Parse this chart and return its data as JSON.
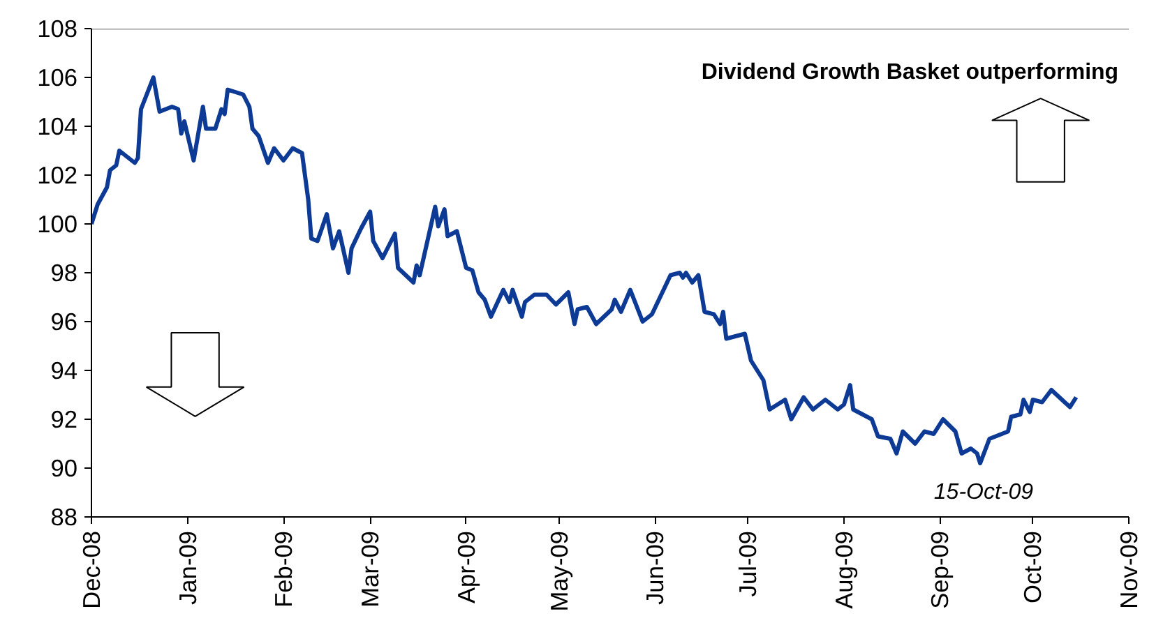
{
  "chart_data": {
    "type": "line",
    "annotations": [
      "Dividend Growth Basket outperforming",
      "15-Oct-09"
    ],
    "xlim": [
      "2008-12-01",
      "2009-11-01"
    ],
    "xticks": [
      {
        "value": "2008-12-01",
        "label": "Dec-08"
      },
      {
        "value": "2009-01-01",
        "label": "Jan-09"
      },
      {
        "value": "2009-02-01",
        "label": "Feb-09"
      },
      {
        "value": "2009-03-01",
        "label": "Mar-09"
      },
      {
        "value": "2009-04-01",
        "label": "Apr-09"
      },
      {
        "value": "2009-05-01",
        "label": "May-09"
      },
      {
        "value": "2009-06-01",
        "label": "Jun-09"
      },
      {
        "value": "2009-07-01",
        "label": "Jul-09"
      },
      {
        "value": "2009-08-01",
        "label": "Aug-09"
      },
      {
        "value": "2009-09-01",
        "label": "Sep-09"
      },
      {
        "value": "2009-10-01",
        "label": "Oct-09"
      },
      {
        "value": "2009-11-01",
        "label": "Nov-09"
      }
    ],
    "ylim": [
      88,
      108
    ],
    "yticks": [
      88,
      90,
      92,
      94,
      96,
      98,
      100,
      102,
      104,
      106,
      108
    ],
    "grid": false,
    "marker": "none",
    "line_style": "solid",
    "x": [
      "2008-12-01",
      "2008-12-03",
      "2008-12-06",
      "2008-12-07",
      "2008-12-09",
      "2008-12-10",
      "2008-12-15",
      "2008-12-16",
      "2008-12-17",
      "2008-12-21",
      "2008-12-23",
      "2008-12-27",
      "2008-12-29",
      "2008-12-30",
      "2008-12-31",
      "2009-01-03",
      "2009-01-06",
      "2009-01-07",
      "2009-01-10",
      "2009-01-12",
      "2009-01-13",
      "2009-01-14",
      "2009-01-19",
      "2009-01-21",
      "2009-01-22",
      "2009-01-24",
      "2009-01-27",
      "2009-01-29",
      "2009-02-01",
      "2009-02-04",
      "2009-02-07",
      "2009-02-09",
      "2009-02-10",
      "2009-02-12",
      "2009-02-15",
      "2009-02-17",
      "2009-02-19",
      "2009-02-22",
      "2009-02-23",
      "2009-02-26",
      "2009-03-01",
      "2009-03-02",
      "2009-03-05",
      "2009-03-09",
      "2009-03-10",
      "2009-03-15",
      "2009-03-16",
      "2009-03-17",
      "2009-03-22",
      "2009-03-23",
      "2009-03-25",
      "2009-03-26",
      "2009-03-29",
      "2009-03-31",
      "2009-04-01",
      "2009-04-03",
      "2009-04-05",
      "2009-04-07",
      "2009-04-09",
      "2009-04-13",
      "2009-04-15",
      "2009-04-16",
      "2009-04-19",
      "2009-04-20",
      "2009-04-23",
      "2009-04-27",
      "2009-04-30",
      "2009-05-04",
      "2009-05-06",
      "2009-05-07",
      "2009-05-10",
      "2009-05-13",
      "2009-05-18",
      "2009-05-19",
      "2009-05-21",
      "2009-05-24",
      "2009-05-28",
      "2009-05-31",
      "2009-06-03",
      "2009-06-06",
      "2009-06-09",
      "2009-06-10",
      "2009-06-11",
      "2009-06-13",
      "2009-06-15",
      "2009-06-17",
      "2009-06-20",
      "2009-06-22",
      "2009-06-23",
      "2009-06-24",
      "2009-06-30",
      "2009-07-02",
      "2009-07-06",
      "2009-07-08",
      "2009-07-13",
      "2009-07-15",
      "2009-07-19",
      "2009-07-22",
      "2009-07-26",
      "2009-07-30",
      "2009-08-01",
      "2009-08-03",
      "2009-08-04",
      "2009-08-10",
      "2009-08-12",
      "2009-08-16",
      "2009-08-18",
      "2009-08-20",
      "2009-08-24",
      "2009-08-27",
      "2009-08-30",
      "2009-09-02",
      "2009-09-06",
      "2009-09-08",
      "2009-09-11",
      "2009-09-13",
      "2009-09-14",
      "2009-09-17",
      "2009-09-21",
      "2009-09-23",
      "2009-09-24",
      "2009-09-27",
      "2009-09-28",
      "2009-09-30",
      "2009-10-01",
      "2009-10-04",
      "2009-10-07",
      "2009-10-13",
      "2009-10-15"
    ],
    "series": [
      {
        "color": "#0d3a94",
        "values": [
          100.0,
          100.8,
          101.5,
          102.2,
          102.4,
          103.0,
          102.5,
          102.7,
          104.7,
          106.0,
          104.6,
          104.8,
          104.7,
          103.7,
          104.2,
          102.6,
          104.8,
          103.9,
          103.9,
          104.7,
          104.5,
          105.5,
          105.3,
          104.8,
          103.9,
          103.6,
          102.5,
          103.1,
          102.6,
          103.1,
          102.9,
          101.0,
          99.4,
          99.3,
          100.4,
          99.0,
          99.7,
          98.0,
          99.0,
          99.8,
          100.5,
          99.3,
          98.6,
          99.6,
          98.2,
          97.6,
          98.3,
          97.9,
          100.7,
          99.9,
          100.6,
          99.5,
          99.7,
          98.7,
          98.2,
          98.1,
          97.2,
          96.9,
          96.2,
          97.3,
          96.8,
          97.3,
          96.2,
          96.8,
          97.1,
          97.1,
          96.7,
          97.2,
          95.9,
          96.5,
          96.6,
          95.9,
          96.5,
          96.9,
          96.4,
          97.3,
          96.0,
          96.3,
          97.1,
          97.9,
          98.0,
          97.8,
          98.0,
          97.6,
          97.9,
          96.4,
          96.3,
          95.9,
          96.4,
          95.3,
          95.5,
          94.4,
          93.6,
          92.4,
          92.8,
          92.0,
          92.9,
          92.4,
          92.8,
          92.4,
          92.6,
          93.4,
          92.4,
          92.0,
          91.3,
          91.2,
          90.6,
          91.5,
          91.0,
          91.5,
          91.4,
          92.0,
          91.5,
          90.6,
          90.8,
          90.6,
          90.2,
          91.2,
          91.4,
          91.5,
          92.1,
          92.2,
          92.8,
          92.3,
          92.8,
          92.7,
          93.2,
          92.5,
          92.9
        ]
      }
    ]
  }
}
